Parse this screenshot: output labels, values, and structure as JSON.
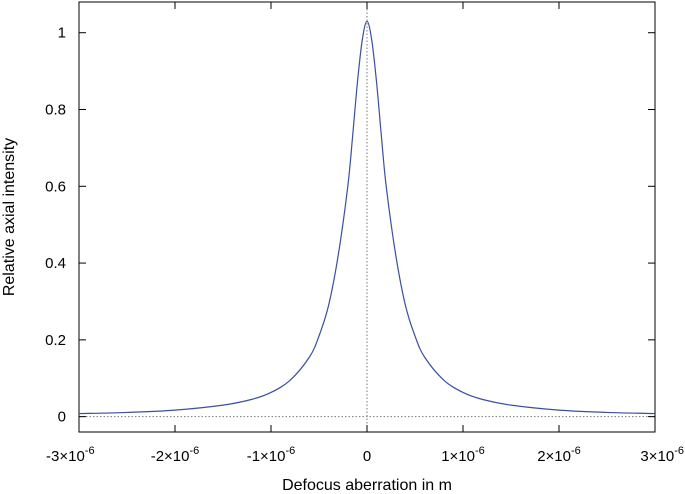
{
  "chart_data": {
    "type": "line",
    "title": "",
    "xlabel": "Defocus aberration in m",
    "ylabel": "Relative axial intensity",
    "xlim": [
      -3e-06,
      3e-06
    ],
    "ylim": [
      -0.04,
      1.08
    ],
    "grid": false,
    "legend": "none",
    "x_ticks": [
      {
        "value": -3e-06,
        "mantissa": "-3×10",
        "exp": "-6"
      },
      {
        "value": -2e-06,
        "mantissa": "-2×10",
        "exp": "-6"
      },
      {
        "value": -1e-06,
        "mantissa": "-1×10",
        "exp": "-6"
      },
      {
        "value": 0,
        "mantissa": "0",
        "exp": ""
      },
      {
        "value": 1e-06,
        "mantissa": "1×10",
        "exp": "-6"
      },
      {
        "value": 2e-06,
        "mantissa": "2×10",
        "exp": "-6"
      },
      {
        "value": 3e-06,
        "mantissa": "3×10",
        "exp": "-6"
      }
    ],
    "y_ticks": [
      {
        "value": 0,
        "label": "0"
      },
      {
        "value": 0.2,
        "label": "0.2"
      },
      {
        "value": 0.4,
        "label": "0.4"
      },
      {
        "value": 0.6,
        "label": "0.6"
      },
      {
        "value": 0.8,
        "label": "0.8"
      },
      {
        "value": 1.0,
        "label": "1"
      }
    ],
    "reference_lines": [
      {
        "orientation": "horizontal",
        "value": 0,
        "style": "dotted"
      },
      {
        "orientation": "vertical",
        "value": 0,
        "style": "dotted"
      }
    ],
    "series": [
      {
        "color": "#3a4fa3",
        "x": [
          -3e-06,
          -2.5e-06,
          -2e-06,
          -1.5e-06,
          -1.2e-06,
          -1e-06,
          -8e-07,
          -6e-07,
          -5e-07,
          -4e-07,
          -3e-07,
          -2e-07,
          -1.5e-07,
          -1e-07,
          -5e-08,
          0,
          5e-08,
          1e-07,
          1.5e-07,
          2e-07,
          3e-07,
          4e-07,
          5e-07,
          6e-07,
          8e-07,
          1e-06,
          1.2e-06,
          1.5e-06,
          2e-06,
          2.5e-06,
          3e-06
        ],
        "y": [
          0.008,
          0.011,
          0.017,
          0.03,
          0.045,
          0.063,
          0.095,
          0.155,
          0.21,
          0.29,
          0.42,
          0.6,
          0.73,
          0.87,
          0.98,
          1.03,
          0.98,
          0.87,
          0.73,
          0.6,
          0.42,
          0.29,
          0.21,
          0.155,
          0.095,
          0.063,
          0.045,
          0.03,
          0.017,
          0.011,
          0.008
        ]
      }
    ]
  }
}
